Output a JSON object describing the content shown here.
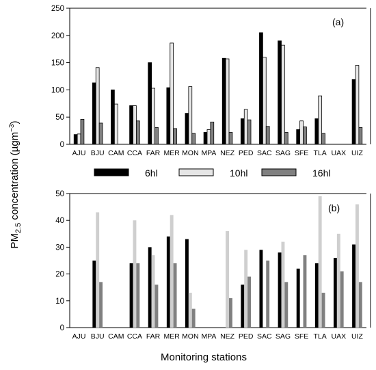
{
  "figure": {
    "ylabel_main": "PM",
    "ylabel_sub": "2.5",
    "ylabel_rest": " concentration (µgm",
    "ylabel_sup": "−3",
    "ylabel_close": ")",
    "xlabel": "Monitoring stations"
  },
  "legend": {
    "items": [
      {
        "label": "6hl",
        "color": "#000000"
      },
      {
        "label": "10hl",
        "color": "#e6e6e6"
      },
      {
        "label": "16hl",
        "color": "#808080"
      }
    ]
  },
  "chart_data": [
    {
      "type": "bar",
      "panel_label": "(a)",
      "categories": [
        "AJU",
        "BJU",
        "CAM",
        "CCA",
        "FAR",
        "MER",
        "MON",
        "MPA",
        "NEZ",
        "PED",
        "SAC",
        "SAG",
        "SFE",
        "TLA",
        "UAX",
        "UIZ"
      ],
      "ylim": [
        0,
        250
      ],
      "yticks": [
        0,
        50,
        100,
        150,
        200,
        250
      ],
      "bar_outline": true,
      "series": [
        {
          "name": "6hl",
          "color": "#000000",
          "values": [
            18,
            113,
            100,
            71,
            150,
            104,
            57,
            22,
            158,
            47,
            205,
            190,
            27,
            47,
            null,
            119
          ]
        },
        {
          "name": "10hl",
          "color": "#e6e6e6",
          "values": [
            19,
            141,
            74,
            71,
            103,
            186,
            106,
            27,
            157,
            64,
            160,
            182,
            43,
            89,
            null,
            145
          ]
        },
        {
          "name": "16hl",
          "color": "#808080",
          "values": [
            46,
            39,
            null,
            43,
            31,
            29,
            20,
            41,
            22,
            45,
            33,
            22,
            32,
            20,
            null,
            31
          ]
        }
      ]
    },
    {
      "type": "bar",
      "panel_label": "(b)",
      "categories": [
        "AJU",
        "BJU",
        "CAM",
        "CCA",
        "FAR",
        "MER",
        "MON",
        "MPA",
        "NEZ",
        "PED",
        "SAC",
        "SAG",
        "SFE",
        "TLA",
        "UAX",
        "UIZ"
      ],
      "ylim": [
        0,
        50
      ],
      "yticks": [
        0,
        10,
        20,
        30,
        40,
        50
      ],
      "bar_outline": false,
      "series": [
        {
          "name": "6hl",
          "color": "#000000",
          "values": [
            null,
            25,
            null,
            24,
            30,
            34,
            33,
            null,
            null,
            16,
            29,
            28,
            22,
            24,
            26,
            31
          ]
        },
        {
          "name": "10hl",
          "color": "#cfcfcf",
          "values": [
            null,
            43,
            null,
            40,
            27,
            42,
            13,
            null,
            36,
            29,
            null,
            32,
            null,
            49,
            35,
            46
          ]
        },
        {
          "name": "16hl",
          "color": "#808080",
          "values": [
            null,
            17,
            null,
            24,
            16,
            24,
            7,
            null,
            11,
            19,
            25,
            17,
            27,
            13,
            21,
            17
          ]
        }
      ]
    }
  ]
}
